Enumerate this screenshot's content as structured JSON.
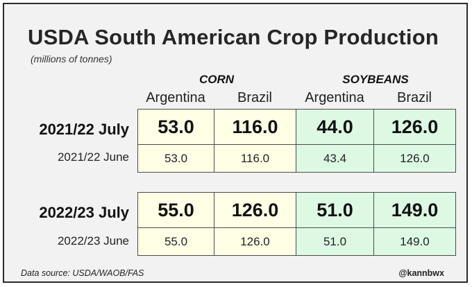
{
  "chart_data": {
    "type": "table",
    "title": "USDA South American Crop Production",
    "subtitle": "(millions of tonnes)",
    "groups": [
      "CORN",
      "SOYBEANS"
    ],
    "columns": [
      "Argentina",
      "Brazil",
      "Argentina",
      "Brazil"
    ],
    "blocks": [
      {
        "rows": [
          {
            "label": "2021/22 July",
            "values": [
              "53.0",
              "116.0",
              "44.0",
              "126.0"
            ]
          },
          {
            "label": "2021/22 June",
            "values": [
              "53.0",
              "116.0",
              "43.4",
              "126.0"
            ]
          }
        ]
      },
      {
        "rows": [
          {
            "label": "2022/23 July",
            "values": [
              "55.0",
              "126.0",
              "51.0",
              "149.0"
            ]
          },
          {
            "label": "2022/23 June",
            "values": [
              "55.0",
              "126.0",
              "51.0",
              "149.0"
            ]
          }
        ]
      }
    ],
    "source": "Data source: USDA/WAOB/FAS",
    "credit": "@kannbwx"
  },
  "colors": {
    "corn_fill": "#ffffe6",
    "soy_fill": "#ddf9e4",
    "border": "#4a4a4a",
    "background": "#f2f2f2"
  }
}
